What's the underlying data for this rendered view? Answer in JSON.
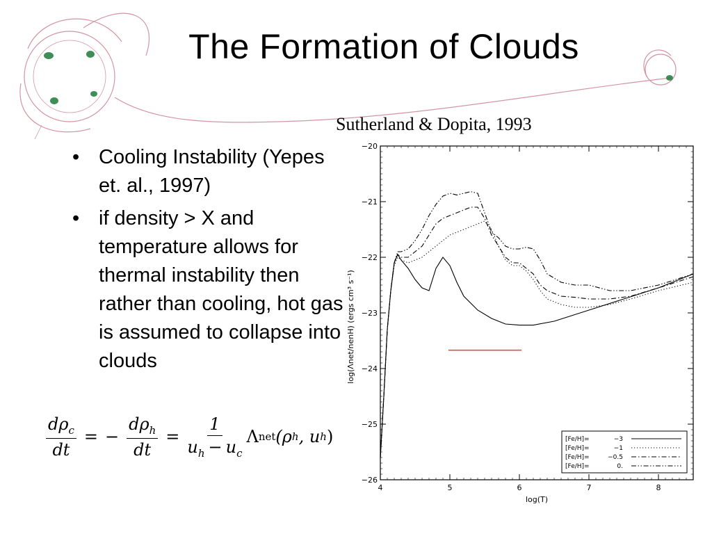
{
  "slide": {
    "title": "The Formation of Clouds",
    "citation": "Sutherland & Dopita, 1993",
    "bullets": [
      {
        "marker": "•",
        "text": "Cooling Instability (Yepes et. al., 1997)"
      },
      {
        "marker": "•",
        "text": "if density > X  and temperature allows for thermal instability then rather than cooling, hot gas is assumed to collapse into clouds"
      }
    ],
    "formula": {
      "lhs_num": "dρ",
      "lhs_num_sub": "c",
      "lhs_den": "dt",
      "eq1": "=",
      "minus": "−",
      "mid_num": "dρ",
      "mid_num_sub": "h",
      "mid_den": "dt",
      "eq2": "=",
      "rhs_num": "1",
      "rhs_den_a": "u",
      "rhs_den_a_sub": "h",
      "rhs_den_op": "−",
      "rhs_den_b": "u",
      "rhs_den_b_sub": "c",
      "lambda": "Λ",
      "lambda_sub": "net",
      "args_open": "(ρ",
      "args_sub1": "h",
      "args_mid": ", u",
      "args_sub2": "h",
      "args_close": ")"
    },
    "colors": {
      "red_marker": "#e8402a",
      "decoration_pink": "#c87a8a",
      "decoration_green": "#1f7a3a"
    }
  },
  "chart_data": {
    "type": "line",
    "xlabel": "log(T)",
    "ylabel": "log(Λnet/nenH) (ergs cm³ s⁻¹)",
    "xlim": [
      4,
      8.5
    ],
    "ylim": [
      -26,
      -20
    ],
    "x_ticks": [
      "4",
      "5",
      "6",
      "7",
      "8"
    ],
    "y_ticks": [
      "−20",
      "−21",
      "−22",
      "−23",
      "−24",
      "−25",
      "−26"
    ],
    "legend_position": "bottom-right",
    "series": [
      {
        "name": "[Fe/H]= −3",
        "label_key": "[Fe/H]=",
        "label_val": "−3",
        "dash": "solid",
        "x": [
          4.0,
          4.05,
          4.1,
          4.15,
          4.2,
          4.25,
          4.3,
          4.4,
          4.5,
          4.6,
          4.7,
          4.8,
          4.9,
          5.0,
          5.1,
          5.2,
          5.4,
          5.6,
          5.8,
          6.0,
          6.2,
          6.5,
          7.0,
          7.5,
          8.0,
          8.5
        ],
        "y": [
          -25.6,
          -24.5,
          -23.3,
          -22.6,
          -22.1,
          -21.95,
          -22.05,
          -22.2,
          -22.4,
          -22.55,
          -22.6,
          -22.2,
          -22.0,
          -22.15,
          -22.45,
          -22.7,
          -22.95,
          -23.1,
          -23.2,
          -23.22,
          -23.22,
          -23.15,
          -22.95,
          -22.75,
          -22.55,
          -22.3
        ]
      },
      {
        "name": "[Fe/H]= −1",
        "label_key": "[Fe/H]=",
        "label_val": "−1",
        "dash": "dotted",
        "x": [
          4.0,
          4.05,
          4.1,
          4.15,
          4.2,
          4.25,
          4.3,
          4.4,
          4.5,
          4.6,
          4.7,
          4.8,
          4.9,
          5.0,
          5.1,
          5.2,
          5.3,
          5.4,
          5.5,
          5.6,
          5.7,
          5.8,
          5.9,
          6.0,
          6.1,
          6.2,
          6.3,
          6.4,
          6.6,
          6.8,
          7.0,
          7.3,
          7.6,
          8.0,
          8.5
        ],
        "y": [
          -25.6,
          -24.5,
          -23.3,
          -22.6,
          -22.15,
          -22.0,
          -22.05,
          -22.1,
          -22.05,
          -22.0,
          -21.9,
          -21.8,
          -21.7,
          -21.6,
          -21.55,
          -21.5,
          -21.45,
          -21.4,
          -21.35,
          -21.5,
          -21.8,
          -22.05,
          -22.15,
          -22.15,
          -22.25,
          -22.4,
          -22.6,
          -22.75,
          -22.85,
          -22.9,
          -22.9,
          -22.85,
          -22.75,
          -22.6,
          -22.45
        ]
      },
      {
        "name": "[Fe/H]= −0.5",
        "label_key": "[Fe/H]=",
        "label_val": "−0.5",
        "dash": "dashdot",
        "x": [
          4.0,
          4.05,
          4.1,
          4.15,
          4.2,
          4.25,
          4.3,
          4.4,
          4.5,
          4.6,
          4.7,
          4.8,
          4.9,
          5.0,
          5.1,
          5.2,
          5.3,
          5.4,
          5.5,
          5.6,
          5.7,
          5.8,
          5.9,
          6.0,
          6.1,
          6.2,
          6.3,
          6.4,
          6.6,
          6.8,
          7.0,
          7.3,
          7.6,
          8.0,
          8.5
        ],
        "y": [
          -25.6,
          -24.5,
          -23.3,
          -22.6,
          -22.1,
          -21.95,
          -22.0,
          -22.0,
          -21.9,
          -21.8,
          -21.6,
          -21.4,
          -21.3,
          -21.25,
          -21.2,
          -21.15,
          -21.1,
          -21.1,
          -21.3,
          -21.6,
          -21.8,
          -22.0,
          -22.1,
          -22.1,
          -22.2,
          -22.3,
          -22.5,
          -22.6,
          -22.7,
          -22.72,
          -22.75,
          -22.75,
          -22.7,
          -22.55,
          -22.35
        ]
      },
      {
        "name": "[Fe/H]= 0.",
        "label_key": "[Fe/H]=",
        "label_val": "0.",
        "dash": "dashdotdot",
        "x": [
          4.0,
          4.05,
          4.1,
          4.15,
          4.2,
          4.25,
          4.3,
          4.4,
          4.5,
          4.6,
          4.7,
          4.8,
          4.9,
          5.0,
          5.1,
          5.2,
          5.3,
          5.4,
          5.5,
          5.6,
          5.7,
          5.8,
          5.9,
          6.0,
          6.1,
          6.2,
          6.3,
          6.4,
          6.6,
          6.8,
          7.0,
          7.3,
          7.6,
          8.0,
          8.5
        ],
        "y": [
          -25.6,
          -24.5,
          -23.3,
          -22.6,
          -22.1,
          -21.9,
          -21.9,
          -21.85,
          -21.7,
          -21.5,
          -21.25,
          -21.05,
          -20.9,
          -20.85,
          -20.88,
          -20.85,
          -20.82,
          -20.85,
          -21.2,
          -21.55,
          -21.65,
          -21.8,
          -21.85,
          -21.85,
          -21.82,
          -21.85,
          -22.05,
          -22.3,
          -22.45,
          -22.5,
          -22.5,
          -22.6,
          -22.6,
          -22.5,
          -22.3
        ]
      }
    ],
    "annotations": [
      {
        "type": "horizontal-line",
        "color": "#e8402a",
        "y": -23.67,
        "x_from": 4.98,
        "x_to": 6.03
      }
    ]
  }
}
